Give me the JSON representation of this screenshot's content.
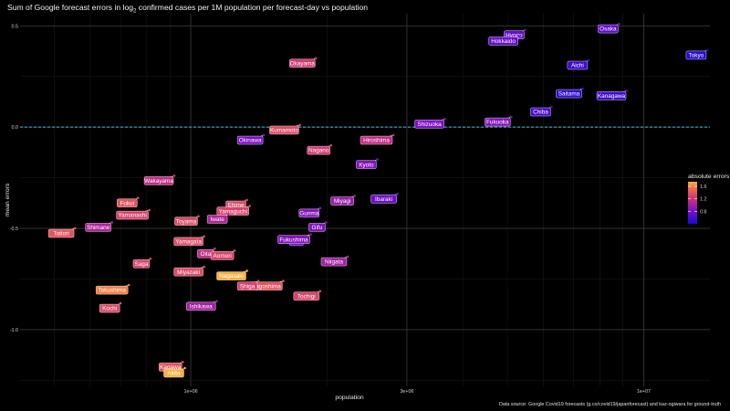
{
  "title_main": "Sum of Google forecast errors in log",
  "title_sub": "2",
  "title_rest": " confirmed cases per 1M population per forecast-day vs population",
  "source": "Data source: Google Covid19 forecasts (g.co/covid19/japanforecast) and kaz-ogiwara for ground-truth",
  "colors": {
    "background": "#000000",
    "grid_major": "#3a3a3a",
    "grid_minor": "#1c1c1c",
    "zero_line": "#40b8d8",
    "label_text": "#ffffff"
  },
  "chart_data": {
    "type": "scatter",
    "title": "Sum of Google forecast errors in log2 confirmed cases per 1M population per forecast-day vs population",
    "xlabel": "population",
    "ylabel": "mean errors",
    "x_scale": "log",
    "xlim": [
      420000,
      14000000
    ],
    "ylim": [
      -1.28,
      0.56
    ],
    "x_ticks": [
      {
        "value": 1000000,
        "label": "1e+06"
      },
      {
        "value": 3000000,
        "label": "3e+06"
      },
      {
        "value": 10000000,
        "label": "1e+07"
      }
    ],
    "y_ticks": [
      {
        "value": 0.5,
        "label": "0.5"
      },
      {
        "value": 0.0,
        "label": "0.0"
      },
      {
        "value": -0.5,
        "label": "-0.5"
      },
      {
        "value": -1.0,
        "label": "-1.0"
      }
    ],
    "zero_line": 0,
    "grid": true,
    "legend": {
      "title": "absolute errors",
      "position": "right",
      "min": 0.4,
      "max": 1.75,
      "ticks": [
        0.8,
        1.2,
        1.6
      ]
    },
    "points": [
      {
        "name": "Osaka",
        "population": 8820000,
        "mean_error": 0.51,
        "abs_error": 0.7
      },
      {
        "name": "Hyogo",
        "population": 5470000,
        "mean_error": 0.48,
        "abs_error": 0.72
      },
      {
        "name": "Hokkaido",
        "population": 5300000,
        "mean_error": 0.45,
        "abs_error": 0.72
      },
      {
        "name": "Tokyo",
        "population": 13800000,
        "mean_error": 0.38,
        "abs_error": 0.45
      },
      {
        "name": "Aichi",
        "population": 7550000,
        "mean_error": 0.33,
        "abs_error": 0.55
      },
      {
        "name": "Okayama",
        "population": 1890000,
        "mean_error": 0.34,
        "abs_error": 1.25
      },
      {
        "name": "Saitama",
        "population": 7330000,
        "mean_error": 0.19,
        "abs_error": 0.5
      },
      {
        "name": "Kanagawa",
        "population": 9180000,
        "mean_error": 0.18,
        "abs_error": 0.55
      },
      {
        "name": "Chiba",
        "population": 6260000,
        "mean_error": 0.1,
        "abs_error": 0.6
      },
      {
        "name": "Shizuoka",
        "population": 3640000,
        "mean_error": 0.04,
        "abs_error": 0.82
      },
      {
        "name": "Fukuoka",
        "population": 5100000,
        "mean_error": 0.05,
        "abs_error": 0.85
      },
      {
        "name": "Kumamoto",
        "population": 1740000,
        "mean_error": 0.01,
        "abs_error": 1.35
      },
      {
        "name": "Hiroshima",
        "population": 2800000,
        "mean_error": -0.04,
        "abs_error": 1.15
      },
      {
        "name": "Nagano",
        "population": 2040000,
        "mean_error": -0.09,
        "abs_error": 1.25
      },
      {
        "name": "Okinawa",
        "population": 1450000,
        "mean_error": -0.04,
        "abs_error": 0.82
      },
      {
        "name": "Kyoto",
        "population": 2580000,
        "mean_error": -0.16,
        "abs_error": 0.85
      },
      {
        "name": "Wakayama",
        "population": 920000,
        "mean_error": -0.24,
        "abs_error": 1.15
      },
      {
        "name": "Ibaraki",
        "population": 2860000,
        "mean_error": -0.33,
        "abs_error": 0.75
      },
      {
        "name": "Miyagi",
        "population": 2300000,
        "mean_error": -0.34,
        "abs_error": 0.95
      },
      {
        "name": "Ehime",
        "population": 1330000,
        "mean_error": -0.36,
        "abs_error": 1.35
      },
      {
        "name": "Fukui",
        "population": 765000,
        "mean_error": -0.35,
        "abs_error": 1.4
      },
      {
        "name": "Yamaguchi",
        "population": 1350000,
        "mean_error": -0.39,
        "abs_error": 1.3
      },
      {
        "name": "Gunma",
        "population": 1930000,
        "mean_error": -0.4,
        "abs_error": 0.85
      },
      {
        "name": "Yamanashi",
        "population": 810000,
        "mean_error": -0.41,
        "abs_error": 1.3
      },
      {
        "name": "Toyama",
        "population": 1040000,
        "mean_error": -0.44,
        "abs_error": 1.35
      },
      {
        "name": "Iwate",
        "population": 1210000,
        "mean_error": -0.43,
        "abs_error": 1.05
      },
      {
        "name": "Gifu",
        "population": 1990000,
        "mean_error": -0.47,
        "abs_error": 0.85
      },
      {
        "name": "Shimane",
        "population": 670000,
        "mean_error": -0.47,
        "abs_error": 1.05
      },
      {
        "name": "Tottori",
        "population": 555000,
        "mean_error": -0.5,
        "abs_error": 1.4
      },
      {
        "name": "Yamagata",
        "population": 1070000,
        "mean_error": -0.54,
        "abs_error": 1.35
      },
      {
        "name": "Mie",
        "population": 1780000,
        "mean_error": -0.54,
        "abs_error": 0.75
      },
      {
        "name": "Fukushima",
        "population": 1840000,
        "mean_error": -0.53,
        "abs_error": 0.85
      },
      {
        "name": "Oita",
        "population": 1130000,
        "mean_error": -0.6,
        "abs_error": 1.15
      },
      {
        "name": "Aomori",
        "population": 1250000,
        "mean_error": -0.61,
        "abs_error": 1.3
      },
      {
        "name": "Saga",
        "population": 815000,
        "mean_error": -0.65,
        "abs_error": 1.3
      },
      {
        "name": "Niigata",
        "population": 2220000,
        "mean_error": -0.64,
        "abs_error": 1.0
      },
      {
        "name": "Miyazaki",
        "population": 1070000,
        "mean_error": -0.69,
        "abs_error": 1.35
      },
      {
        "name": "Nagasaki",
        "population": 1330000,
        "mean_error": -0.71,
        "abs_error": 1.75
      },
      {
        "name": "Kagoshima",
        "population": 1600000,
        "mean_error": -0.76,
        "abs_error": 1.4
      },
      {
        "name": "Shiga",
        "population": 1410000,
        "mean_error": -0.76,
        "abs_error": 1.3
      },
      {
        "name": "Tokushima",
        "population": 730000,
        "mean_error": -0.78,
        "abs_error": 1.6
      },
      {
        "name": "Tochigi",
        "population": 1930000,
        "mean_error": -0.81,
        "abs_error": 1.3
      },
      {
        "name": "Ishikawa",
        "population": 1140000,
        "mean_error": -0.86,
        "abs_error": 1.0
      },
      {
        "name": "Kochi",
        "population": 700000,
        "mean_error": -0.87,
        "abs_error": 1.35
      },
      {
        "name": "Kagawa",
        "population": 960000,
        "mean_error": -1.16,
        "abs_error": 1.4
      },
      {
        "name": "Akita",
        "population": 970000,
        "mean_error": -1.19,
        "abs_error": 1.75
      }
    ]
  }
}
